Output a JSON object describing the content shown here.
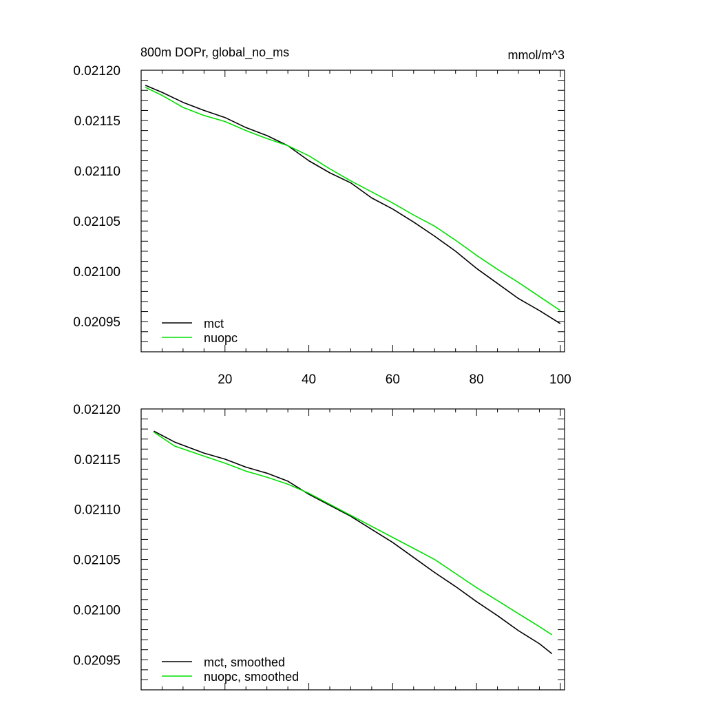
{
  "chart_data": [
    {
      "type": "line",
      "title": "800m DOPr, global_no_ms",
      "units": "mmol/m^3",
      "xlabel": "",
      "ylabel": "",
      "xlim": [
        0,
        101
      ],
      "ylim": [
        0.02092,
        0.0212
      ],
      "xticks": [
        "20",
        "40",
        "60",
        "80",
        "100"
      ],
      "yticks": [
        "0.02120",
        "0.02115",
        "0.02110",
        "0.02105",
        "0.02100",
        "0.02095"
      ],
      "grid": false,
      "legend_position": "bottom-left",
      "series": [
        {
          "name": "mct",
          "color": "#000000",
          "x": [
            1,
            5,
            10,
            15,
            20,
            25,
            30,
            35,
            40,
            45,
            50,
            55,
            60,
            65,
            70,
            75,
            80,
            85,
            90,
            95,
            100
          ],
          "y": [
            0.021185,
            0.021178,
            0.021168,
            0.02116,
            0.021153,
            0.021143,
            0.021135,
            0.021125,
            0.02111,
            0.021098,
            0.021088,
            0.021073,
            0.021062,
            0.021049,
            0.021035,
            0.02102,
            0.021003,
            0.020988,
            0.020973,
            0.020961,
            0.020948
          ]
        },
        {
          "name": "nuopc",
          "color": "#00e000",
          "x": [
            1,
            5,
            10,
            15,
            20,
            25,
            30,
            35,
            40,
            45,
            50,
            55,
            60,
            65,
            70,
            75,
            80,
            85,
            90,
            95,
            100
          ],
          "y": [
            0.021183,
            0.021175,
            0.021163,
            0.021155,
            0.021149,
            0.02114,
            0.021132,
            0.021125,
            0.021115,
            0.021102,
            0.02109,
            0.021079,
            0.021068,
            0.021056,
            0.021045,
            0.021031,
            0.021016,
            0.021002,
            0.020989,
            0.020975,
            0.020961
          ]
        }
      ]
    },
    {
      "type": "line",
      "title": "",
      "xlabel": "",
      "ylabel": "",
      "xlim": [
        0,
        101
      ],
      "ylim": [
        0.02092,
        0.0212
      ],
      "xticks": [
        "",
        "",
        "",
        "",
        ""
      ],
      "yticks": [
        "0.02120",
        "0.02115",
        "0.02110",
        "0.02105",
        "0.02100",
        "0.02095"
      ],
      "grid": false,
      "legend_position": "bottom-left",
      "series": [
        {
          "name": "mct, smoothed",
          "color": "#000000",
          "x": [
            3,
            8,
            15,
            20,
            25,
            30,
            35,
            40,
            45,
            50,
            55,
            60,
            65,
            70,
            75,
            80,
            85,
            90,
            95,
            98
          ],
          "y": [
            0.021178,
            0.021167,
            0.021156,
            0.02115,
            0.021142,
            0.021136,
            0.021128,
            0.021115,
            0.021104,
            0.021093,
            0.02108,
            0.021067,
            0.021052,
            0.021037,
            0.021023,
            0.021008,
            0.020994,
            0.020979,
            0.020966,
            0.020956
          ]
        },
        {
          "name": "nuopc, smoothed",
          "color": "#00e000",
          "x": [
            3,
            8,
            15,
            20,
            25,
            30,
            35,
            40,
            45,
            50,
            55,
            60,
            65,
            70,
            75,
            80,
            85,
            90,
            95,
            98
          ],
          "y": [
            0.021177,
            0.021163,
            0.021153,
            0.021146,
            0.021138,
            0.021132,
            0.021125,
            0.021116,
            0.021105,
            0.021094,
            0.021083,
            0.021072,
            0.021061,
            0.02105,
            0.021036,
            0.021022,
            0.021009,
            0.020996,
            0.020983,
            0.020975
          ]
        }
      ]
    }
  ]
}
